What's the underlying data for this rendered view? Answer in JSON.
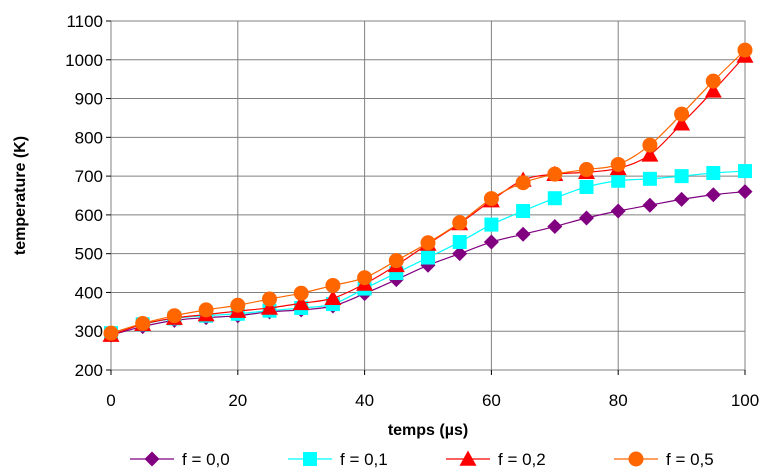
{
  "chart_data": {
    "type": "line",
    "xlabel": "temps (µs)",
    "ylabel": "temperature (K)",
    "xlim": [
      0,
      100
    ],
    "ylim": [
      200,
      1100
    ],
    "xticks": [
      0,
      20,
      40,
      60,
      80,
      100
    ],
    "yticks": [
      200,
      300,
      400,
      500,
      600,
      700,
      800,
      900,
      1000,
      1100
    ],
    "grid": true,
    "legend_position": "bottom",
    "x": [
      0,
      5,
      10,
      15,
      20,
      25,
      30,
      35,
      40,
      45,
      50,
      55,
      60,
      65,
      70,
      75,
      80,
      85,
      90,
      95,
      100
    ],
    "series": [
      {
        "name": "f = 0,0",
        "color": "#800080",
        "marker": "diamond",
        "values": [
          290,
          312,
          328,
          335,
          340,
          350,
          355,
          365,
          397,
          433,
          470,
          500,
          530,
          550,
          570,
          592,
          610,
          625,
          640,
          652,
          660
        ]
      },
      {
        "name": "f = 0,1",
        "color": "#00FFFF",
        "marker": "square",
        "values": [
          295,
          318,
          333,
          340,
          345,
          353,
          360,
          370,
          410,
          450,
          490,
          530,
          575,
          610,
          643,
          672,
          688,
          693,
          700,
          708,
          713
        ]
      },
      {
        "name": "f = 0,2",
        "color": "#FF0000",
        "marker": "triangle",
        "values": [
          290,
          318,
          334,
          343,
          352,
          360,
          372,
          385,
          422,
          470,
          525,
          578,
          637,
          690,
          705,
          710,
          720,
          755,
          835,
          920,
          1010
        ]
      },
      {
        "name": "f = 0,5",
        "color": "#FF6600",
        "marker": "circle",
        "values": [
          295,
          320,
          340,
          355,
          367,
          383,
          398,
          418,
          438,
          482,
          528,
          580,
          642,
          683,
          705,
          717,
          730,
          780,
          860,
          945,
          1025
        ]
      }
    ]
  }
}
